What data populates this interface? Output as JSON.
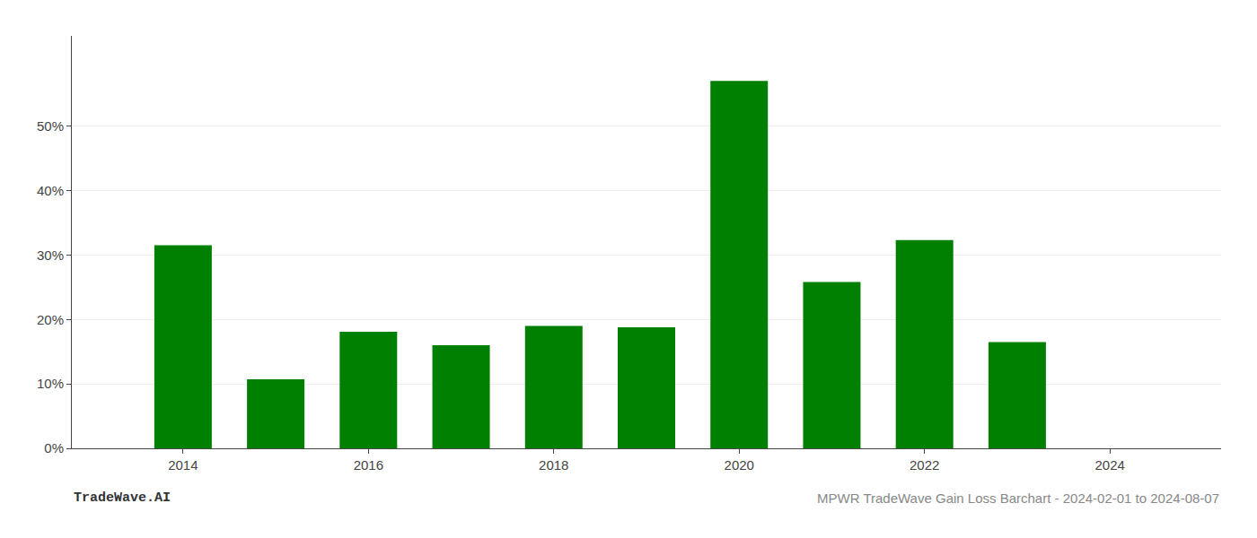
{
  "chart_data": {
    "type": "bar",
    "title": "MPWR TradeWave Gain Loss Barchart - 2024-02-01 to 2024-08-07",
    "annotations": [
      "TradeWave.AI"
    ],
    "x": [
      2014,
      2015,
      2016,
      2017,
      2018,
      2019,
      2020,
      2021,
      2022,
      2023
    ],
    "values": [
      0.315,
      0.107,
      0.181,
      0.16,
      0.19,
      0.188,
      0.57,
      0.258,
      0.323,
      0.165
    ],
    "color": "#008000",
    "xlim": [
      2012.8,
      2025.2
    ],
    "xticks": [
      2014,
      2016,
      2018,
      2020,
      2022,
      2024
    ],
    "ylim": [
      0,
      0.64
    ],
    "yticks": [
      {
        "value": 0.0,
        "label": "0%"
      },
      {
        "value": 0.1,
        "label": "10%"
      },
      {
        "value": 0.2,
        "label": "20%"
      },
      {
        "value": 0.3,
        "label": "30%"
      },
      {
        "value": 0.4,
        "label": "40%"
      },
      {
        "value": 0.5,
        "label": "50%"
      }
    ],
    "grid": "y"
  }
}
